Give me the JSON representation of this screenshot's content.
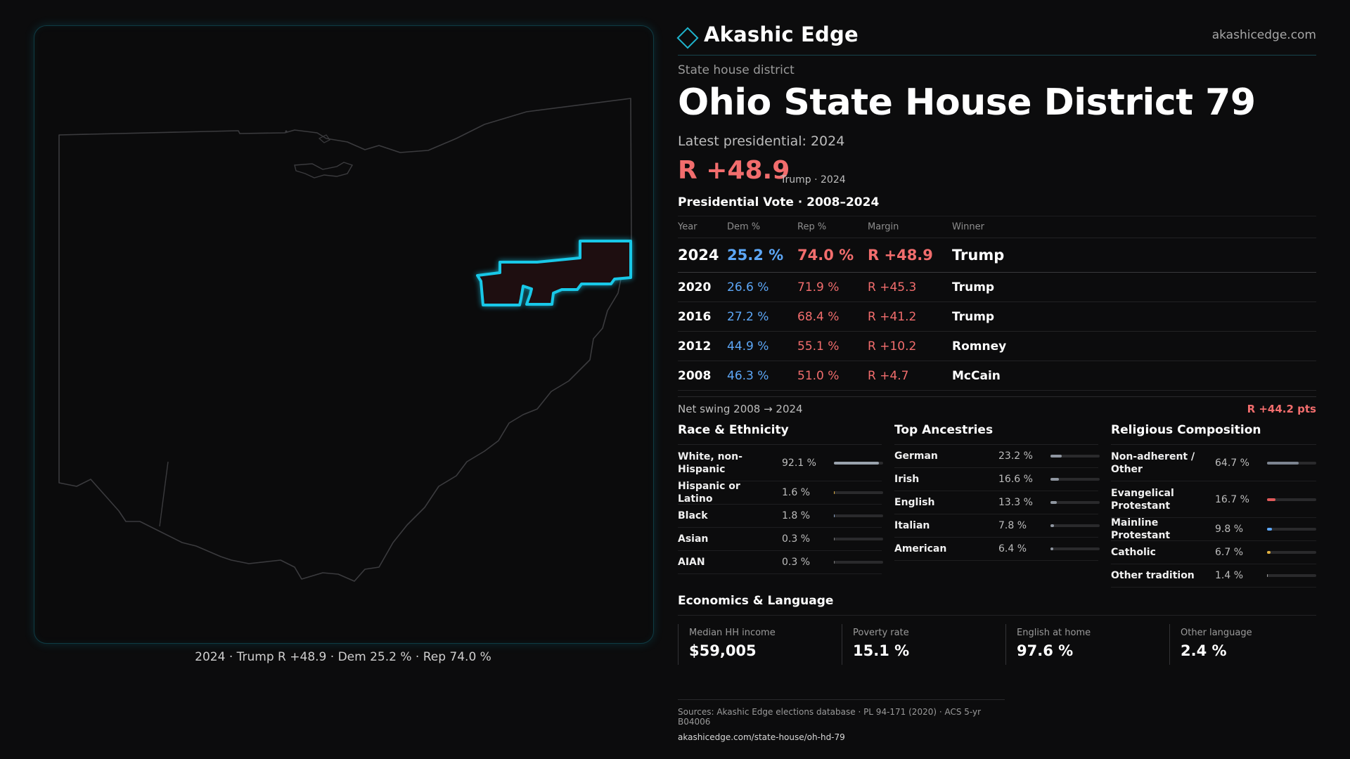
{
  "brand": {
    "name": "Akashic Edge",
    "url": "akashicedge.com",
    "accent": "#1fb4cc"
  },
  "header": {
    "kicker": "State house district",
    "title": "Ohio State House District 79",
    "latest_label": "Latest presidential: 2024",
    "margin": "R +48.9",
    "margin_sub": "Trump · 2024"
  },
  "map": {
    "caption": "2024 · Trump R +48.9 · Dem 25.2 % · Rep 74.0 %",
    "highlight_color": "#18c8e8",
    "state": "Ohio",
    "district": "Ohio State House District 79"
  },
  "presidential": {
    "title": "Presidential Vote · 2008–2024",
    "columns": [
      "Year",
      "Dem %",
      "Rep %",
      "Margin",
      "Winner"
    ],
    "rows": [
      {
        "year": "2024",
        "dem": "25.2 %",
        "rep": "74.0 %",
        "margin": "R +48.9",
        "winner": "Trump"
      },
      {
        "year": "2020",
        "dem": "26.6 %",
        "rep": "71.9 %",
        "margin": "R +45.3",
        "winner": "Trump"
      },
      {
        "year": "2016",
        "dem": "27.2 %",
        "rep": "68.4 %",
        "margin": "R +41.2",
        "winner": "Trump"
      },
      {
        "year": "2012",
        "dem": "44.9 %",
        "rep": "55.1 %",
        "margin": "R +10.2",
        "winner": "Romney"
      },
      {
        "year": "2008",
        "dem": "46.3 %",
        "rep": "51.0 %",
        "margin": "R +4.7",
        "winner": "McCain"
      }
    ],
    "swing_label": "Net swing 2008 → 2024",
    "swing_value": "R +44.2 pts",
    "colors": {
      "dem": "#5da7f7",
      "rep": "#f26d6d"
    }
  },
  "race": {
    "title": "Race & Ethnicity",
    "rows": [
      {
        "label": "White, non-Hispanic",
        "value": "92.1 %",
        "pct": 92.1,
        "color": "#9aa3ad"
      },
      {
        "label": "Hispanic or Latino",
        "value": "1.6 %",
        "pct": 1.6,
        "color": "#e0b040"
      },
      {
        "label": "Black",
        "value": "1.8 %",
        "pct": 1.8,
        "color": "#8aa0c0"
      },
      {
        "label": "Asian",
        "value": "0.3 %",
        "pct": 0.3,
        "color": "#7a7a7a"
      },
      {
        "label": "AIAN",
        "value": "0.3 %",
        "pct": 0.3,
        "color": "#7a7a7a"
      }
    ]
  },
  "ancestry": {
    "title": "Top Ancestries",
    "rows": [
      {
        "label": "German",
        "value": "23.2 %",
        "pct": 23.2,
        "color": "#8f96a0"
      },
      {
        "label": "Irish",
        "value": "16.6 %",
        "pct": 16.6,
        "color": "#8f96a0"
      },
      {
        "label": "English",
        "value": "13.3 %",
        "pct": 13.3,
        "color": "#8f96a0"
      },
      {
        "label": "Italian",
        "value": "7.8 %",
        "pct": 7.8,
        "color": "#8f96a0"
      },
      {
        "label": "American",
        "value": "6.4 %",
        "pct": 6.4,
        "color": "#8f96a0"
      }
    ]
  },
  "religion": {
    "title": "Religious Composition",
    "rows": [
      {
        "label": "Non-adherent / Other",
        "value": "64.7 %",
        "pct": 64.7,
        "color": "#7c8490"
      },
      {
        "label": "Evangelical Protestant",
        "value": "16.7 %",
        "pct": 16.7,
        "color": "#e05a5a"
      },
      {
        "label": "Mainline Protestant",
        "value": "9.8 %",
        "pct": 9.8,
        "color": "#5da7f7"
      },
      {
        "label": "Catholic",
        "value": "6.7 %",
        "pct": 6.7,
        "color": "#e0b040"
      },
      {
        "label": "Other tradition",
        "value": "1.4 %",
        "pct": 1.4,
        "color": "#9a9a9a"
      }
    ]
  },
  "economics": {
    "title": "Economics & Language",
    "cards": [
      {
        "label": "Median HH income",
        "value": "$59,005"
      },
      {
        "label": "Poverty rate",
        "value": "15.1 %"
      },
      {
        "label": "English at home",
        "value": "97.6 %"
      },
      {
        "label": "Other language",
        "value": "2.4 %"
      }
    ]
  },
  "sources": {
    "line": "Sources: Akashic Edge elections database · PL 94-171 (2020) · ACS 5-yr B04006",
    "url": "akashicedge.com/state-house/oh-hd-79"
  }
}
